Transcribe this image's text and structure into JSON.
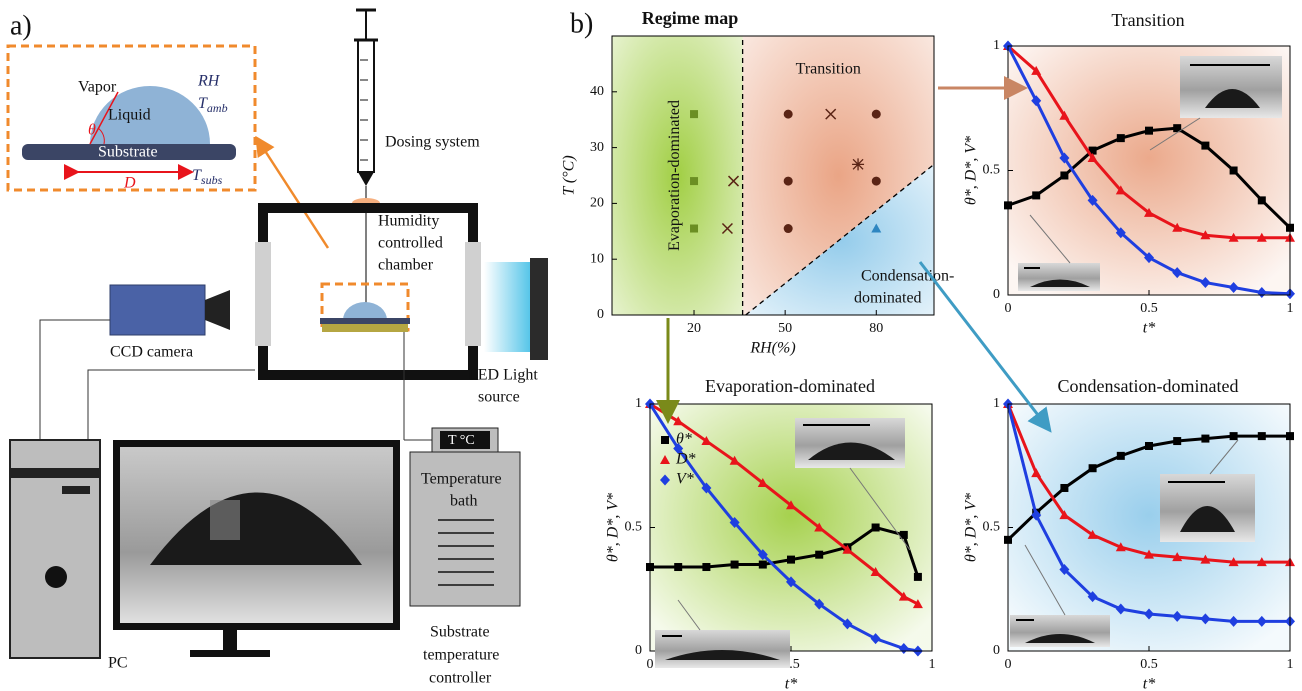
{
  "panel_a": {
    "label": "a)",
    "vapor": "Vapor",
    "liquid": "Liquid",
    "rh": "RH",
    "t_amb": [
      "T",
      "amb"
    ],
    "theta": "θ",
    "substrate": "Substrate",
    "d": "D",
    "t_subs": [
      "T",
      "subs"
    ],
    "dosing": "Dosing system",
    "chamber": [
      "Humidity",
      "controlled",
      "chamber"
    ],
    "camera": "CCD camera",
    "led": [
      "LED Light",
      "source"
    ],
    "display": "T °C",
    "bath": [
      "Temperature",
      "bath"
    ],
    "pc": "PC",
    "controller": [
      "Substrate",
      "temperature",
      "controller"
    ]
  },
  "panel_b_label": "b)",
  "chart_data": [
    {
      "type": "scatter",
      "title": "Regime map",
      "x_label": "RH(%)",
      "y_label": "T (°C)",
      "xlim": [
        -7,
        99
      ],
      "ylim": [
        0,
        50
      ],
      "xticks": [
        20,
        50,
        80
      ],
      "yticks": [
        0,
        10,
        20,
        30,
        40
      ],
      "regions": {
        "evaporation": "Evaporation-dominated",
        "transition": "Transition",
        "condensation": [
          "Condensation-",
          "dominated"
        ]
      },
      "boundaries": [
        {
          "x": [
            36,
            36
          ],
          "values": [
            0,
            50
          ]
        },
        {
          "x": [
            37,
            99
          ],
          "values": [
            0,
            27
          ]
        }
      ],
      "series": [
        {
          "marker": "square",
          "color": "#6b8e23",
          "x": [
            20,
            20,
            20
          ],
          "values": [
            36,
            24,
            15.5
          ]
        },
        {
          "marker": "cross",
          "color": "#5a2415",
          "x": [
            33,
            31,
            65
          ],
          "values": [
            24,
            15.5,
            36
          ]
        },
        {
          "marker": "circle",
          "color": "#5a2415",
          "x": [
            51,
            51,
            51,
            80,
            80
          ],
          "values": [
            36,
            24,
            15.5,
            36,
            24
          ]
        },
        {
          "marker": "asterisk",
          "color": "#5a2415",
          "x": [
            74
          ],
          "values": [
            27
          ]
        },
        {
          "marker": "triangle",
          "color": "#2e86c1",
          "x": [
            80
          ],
          "values": [
            15.5
          ]
        }
      ]
    },
    {
      "type": "line",
      "title": "Transition",
      "x_label": "t*",
      "y_label": "θ*, D*, V*",
      "xlim": [
        0,
        1
      ],
      "ylim": [
        0,
        1
      ],
      "xticks": [
        0,
        0.5,
        1
      ],
      "yticks": [
        0,
        0.5,
        1
      ],
      "background": "#e9a07f",
      "x": [
        0,
        0.1,
        0.2,
        0.3,
        0.4,
        0.5,
        0.6,
        0.7,
        0.8,
        0.9,
        1
      ],
      "series": [
        {
          "marker": "square",
          "color": "#000000",
          "values": [
            0.36,
            0.4,
            0.48,
            0.58,
            0.63,
            0.66,
            0.67,
            0.6,
            0.5,
            0.38,
            0.27
          ]
        },
        {
          "marker": "triangle",
          "color": "#e8141b",
          "values": [
            1,
            0.9,
            0.72,
            0.55,
            0.42,
            0.33,
            0.27,
            0.24,
            0.23,
            0.23,
            0.23
          ]
        },
        {
          "marker": "diamond",
          "color": "#1f3fe0",
          "values": [
            1,
            0.78,
            0.55,
            0.38,
            0.25,
            0.15,
            0.09,
            0.05,
            0.03,
            0.01,
            0.005
          ]
        }
      ]
    },
    {
      "type": "line",
      "title": "Evaporation-dominated",
      "x_label": "t*",
      "y_label": "θ*, D*, V*",
      "xlim": [
        0,
        1
      ],
      "ylim": [
        0,
        1
      ],
      "xticks": [
        0,
        0.5,
        1
      ],
      "yticks": [
        0,
        0.5,
        1
      ],
      "background": "#9ccc3a",
      "x": [
        0,
        0.1,
        0.2,
        0.3,
        0.4,
        0.5,
        0.6,
        0.7,
        0.8,
        0.9,
        0.95
      ],
      "series": [
        {
          "name": "θ*",
          "marker": "square",
          "color": "#000000",
          "values": [
            0.34,
            0.34,
            0.34,
            0.35,
            0.35,
            0.37,
            0.39,
            0.42,
            0.5,
            0.47,
            0.3
          ]
        },
        {
          "name": "D*",
          "marker": "triangle",
          "color": "#e8141b",
          "values": [
            1,
            0.93,
            0.85,
            0.77,
            0.68,
            0.59,
            0.5,
            0.41,
            0.32,
            0.22,
            0.19
          ]
        },
        {
          "name": "V*",
          "marker": "diamond",
          "color": "#1f3fe0",
          "values": [
            1,
            0.82,
            0.66,
            0.52,
            0.39,
            0.28,
            0.19,
            0.11,
            0.05,
            0.01,
            0
          ]
        }
      ]
    },
    {
      "type": "line",
      "title": "Condensation-dominated",
      "x_label": "t*",
      "y_label": "θ*, D*, V*",
      "xlim": [
        0,
        1
      ],
      "ylim": [
        0,
        1
      ],
      "xticks": [
        0,
        0.5,
        1
      ],
      "yticks": [
        0,
        0.5,
        1
      ],
      "background": "#8ec9ea",
      "x": [
        0,
        0.1,
        0.2,
        0.3,
        0.4,
        0.5,
        0.6,
        0.7,
        0.8,
        0.9,
        1
      ],
      "series": [
        {
          "marker": "square",
          "color": "#000000",
          "values": [
            0.45,
            0.56,
            0.66,
            0.74,
            0.79,
            0.83,
            0.85,
            0.86,
            0.87,
            0.87,
            0.87
          ]
        },
        {
          "marker": "triangle",
          "color": "#e8141b",
          "values": [
            1,
            0.72,
            0.55,
            0.47,
            0.42,
            0.39,
            0.38,
            0.37,
            0.36,
            0.36,
            0.36
          ]
        },
        {
          "marker": "diamond",
          "color": "#1f3fe0",
          "values": [
            1,
            0.55,
            0.33,
            0.22,
            0.17,
            0.15,
            0.14,
            0.13,
            0.12,
            0.12,
            0.12
          ]
        }
      ]
    }
  ]
}
